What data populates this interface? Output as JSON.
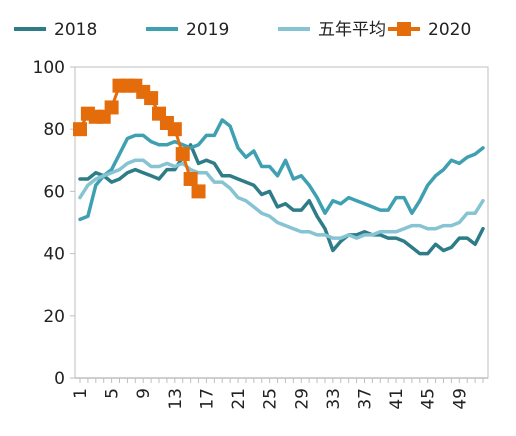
{
  "chart_data": {
    "type": "line",
    "title": "",
    "xlabel": "",
    "ylabel": "",
    "ylim": [
      0,
      100
    ],
    "yticks": [
      0,
      20,
      40,
      60,
      80,
      100
    ],
    "xlim": [
      1,
      52
    ],
    "xticks": [
      1,
      5,
      9,
      13,
      17,
      21,
      25,
      29,
      33,
      37,
      41,
      45,
      49
    ],
    "grid": false,
    "legend_position": "top",
    "series": [
      {
        "name": "2018",
        "color": "#2E7C87",
        "marker": "none",
        "x": [
          1,
          2,
          3,
          4,
          5,
          6,
          7,
          8,
          9,
          10,
          11,
          12,
          13,
          14,
          15,
          16,
          17,
          18,
          19,
          20,
          21,
          22,
          23,
          24,
          25,
          26,
          27,
          28,
          29,
          30,
          31,
          32,
          33,
          34,
          35,
          36,
          37,
          38,
          39,
          40,
          41,
          42,
          43,
          44,
          45,
          46,
          47,
          48,
          49,
          50,
          51,
          52
        ],
        "values": [
          64,
          64,
          66,
          65,
          63,
          64,
          66,
          67,
          66,
          65,
          64,
          67,
          67,
          71,
          75,
          69,
          70,
          69,
          65,
          65,
          64,
          63,
          62,
          59,
          60,
          55,
          56,
          54,
          54,
          57,
          52,
          48,
          41,
          44,
          46,
          46,
          47,
          46,
          46,
          45,
          45,
          44,
          42,
          40,
          40,
          43,
          41,
          42,
          45,
          45,
          43,
          48
        ]
      },
      {
        "name": "2019",
        "color": "#3FA0B2",
        "marker": "none",
        "x": [
          1,
          2,
          3,
          4,
          5,
          6,
          7,
          8,
          9,
          10,
          11,
          12,
          13,
          14,
          15,
          16,
          17,
          18,
          19,
          20,
          21,
          22,
          23,
          24,
          25,
          26,
          27,
          28,
          29,
          30,
          31,
          32,
          33,
          34,
          35,
          36,
          37,
          38,
          39,
          40,
          41,
          42,
          43,
          44,
          45,
          46,
          47,
          48,
          49,
          50,
          51,
          52
        ],
        "values": [
          51,
          52,
          62,
          65,
          67,
          72,
          77,
          78,
          78,
          76,
          75,
          75,
          76,
          75,
          74,
          75,
          78,
          78,
          83,
          81,
          74,
          71,
          73,
          68,
          68,
          65,
          70,
          64,
          65,
          62,
          58,
          53,
          57,
          56,
          58,
          57,
          56,
          55,
          54,
          54,
          58,
          58,
          53,
          57,
          62,
          65,
          67,
          70,
          69,
          71,
          72,
          74
        ]
      },
      {
        "name": "五年平均",
        "color": "#86C3D3",
        "marker": "none",
        "x": [
          1,
          2,
          3,
          4,
          5,
          6,
          7,
          8,
          9,
          10,
          11,
          12,
          13,
          14,
          15,
          16,
          17,
          18,
          19,
          20,
          21,
          22,
          23,
          24,
          25,
          26,
          27,
          28,
          29,
          30,
          31,
          32,
          33,
          34,
          35,
          36,
          37,
          38,
          39,
          40,
          41,
          42,
          43,
          44,
          45,
          46,
          47,
          48,
          49,
          50,
          51,
          52
        ],
        "values": [
          58,
          62,
          64,
          65,
          66,
          67,
          69,
          70,
          70,
          68,
          68,
          69,
          68,
          69,
          67,
          66,
          66,
          63,
          63,
          61,
          58,
          57,
          55,
          53,
          52,
          50,
          49,
          48,
          47,
          47,
          46,
          46,
          45,
          45,
          46,
          45,
          46,
          46,
          47,
          47,
          47,
          48,
          49,
          49,
          48,
          48,
          49,
          49,
          50,
          53,
          53,
          57
        ]
      },
      {
        "name": "2020",
        "color": "#E46C0A",
        "marker": "square",
        "x": [
          1,
          2,
          3,
          4,
          5,
          6,
          7,
          8,
          9,
          10,
          11,
          12,
          13,
          14,
          15,
          16
        ],
        "values": [
          80,
          85,
          84,
          84,
          87,
          94,
          94,
          94,
          92,
          90,
          85,
          82,
          80,
          72,
          64,
          60
        ]
      }
    ]
  }
}
